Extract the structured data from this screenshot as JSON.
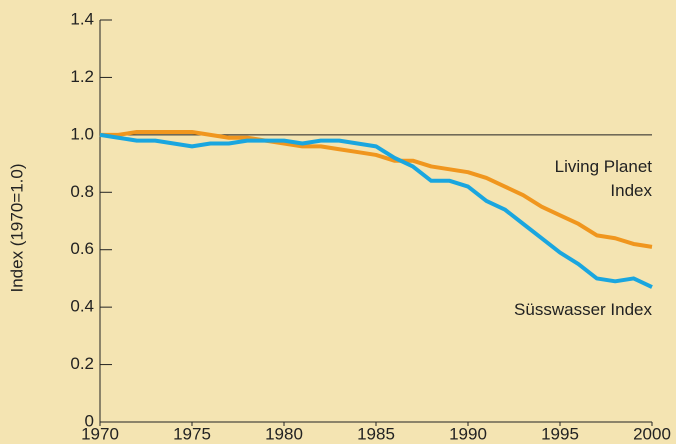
{
  "chart_data": {
    "type": "line",
    "y_label": "Index (1970=1.0)",
    "x": [
      1970,
      1971,
      1972,
      1973,
      1974,
      1975,
      1976,
      1977,
      1978,
      1979,
      1980,
      1981,
      1982,
      1983,
      1984,
      1985,
      1986,
      1987,
      1988,
      1989,
      1990,
      1991,
      1992,
      1993,
      1994,
      1995,
      1996,
      1997,
      1998,
      1999,
      2000
    ],
    "series": [
      {
        "name": "Living Planet Index",
        "color": "#f0961e",
        "values": [
          1.0,
          1.0,
          1.01,
          1.01,
          1.01,
          1.01,
          1.0,
          0.99,
          0.99,
          0.98,
          0.97,
          0.96,
          0.96,
          0.95,
          0.94,
          0.93,
          0.91,
          0.91,
          0.89,
          0.88,
          0.87,
          0.85,
          0.82,
          0.79,
          0.75,
          0.72,
          0.69,
          0.65,
          0.64,
          0.62,
          0.61
        ]
      },
      {
        "name": "Süsswasser Index",
        "color": "#1aa6df",
        "values": [
          1.0,
          0.99,
          0.98,
          0.98,
          0.97,
          0.96,
          0.97,
          0.97,
          0.98,
          0.98,
          0.98,
          0.97,
          0.98,
          0.98,
          0.97,
          0.96,
          0.92,
          0.89,
          0.84,
          0.84,
          0.82,
          0.77,
          0.74,
          0.69,
          0.64,
          0.59,
          0.55,
          0.5,
          0.49,
          0.5,
          0.47
        ]
      }
    ],
    "xlim": [
      1970,
      2000
    ],
    "xticks": [
      1970,
      1975,
      1980,
      1985,
      1990,
      1995,
      2000
    ],
    "ylim": [
      0,
      1.4
    ],
    "yticks": [
      0,
      0.2,
      0.4,
      0.6,
      0.8,
      {
        "value": 1,
        "label": "1.0"
      },
      1.2,
      1.4
    ],
    "reference_line": 1
  }
}
